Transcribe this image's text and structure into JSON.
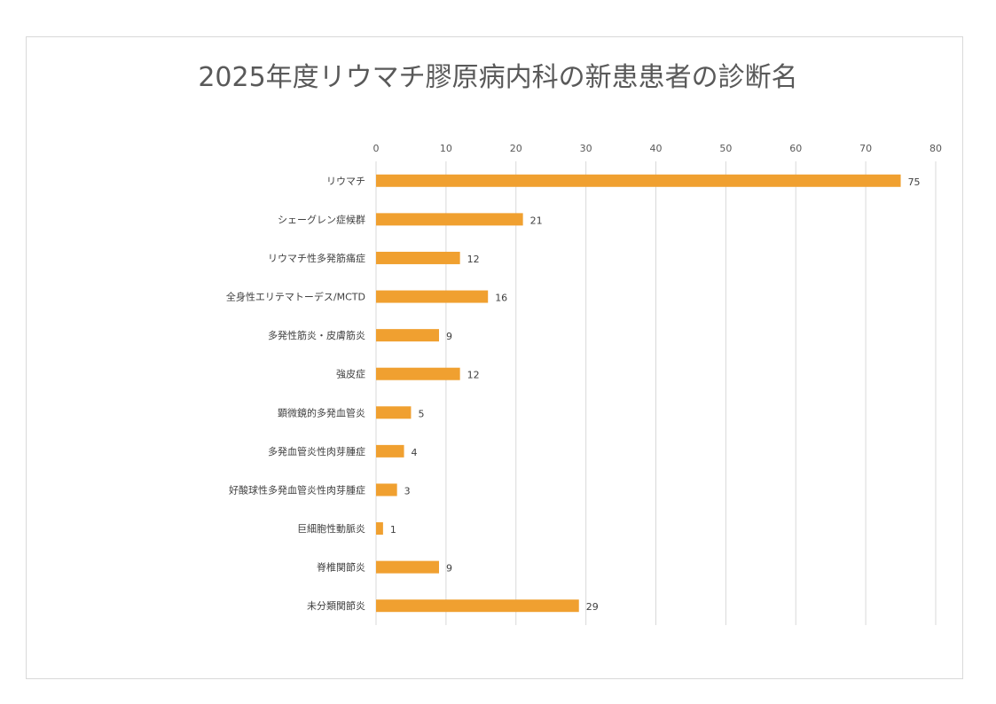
{
  "chart_data": {
    "type": "bar",
    "orientation": "horizontal",
    "title": "2025年度リウマチ膠原病内科の新患患者の診断名",
    "categories": [
      "リウマチ",
      "シェーグレン症候群",
      "リウマチ性多発筋痛症",
      "全身性エリテマトーデス/MCTD",
      "多発性筋炎・皮膚筋炎",
      "強皮症",
      "顕微鏡的多発血管炎",
      "多発血管炎性肉芽腫症",
      "好酸球性多発血管炎性肉芽腫症",
      "巨細胞性動脈炎",
      "脊椎関節炎",
      "未分類関節炎"
    ],
    "values": [
      75,
      21,
      12,
      16,
      9,
      12,
      5,
      4,
      3,
      1,
      9,
      29
    ],
    "xlim": [
      0,
      80
    ],
    "xticks": [
      0,
      10,
      20,
      30,
      40,
      50,
      60,
      70,
      80
    ],
    "xaxis_position": "top",
    "grid": true,
    "data_labels": true,
    "legend": "none",
    "bar_color": "#F0A030",
    "grid_color": "#d9d9d9"
  }
}
